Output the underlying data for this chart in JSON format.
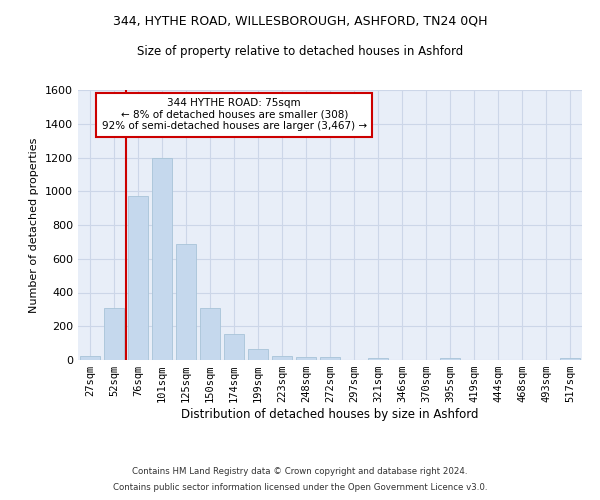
{
  "title1": "344, HYTHE ROAD, WILLESBOROUGH, ASHFORD, TN24 0QH",
  "title2": "Size of property relative to detached houses in Ashford",
  "xlabel": "Distribution of detached houses by size in Ashford",
  "ylabel": "Number of detached properties",
  "categories": [
    "27sqm",
    "52sqm",
    "76sqm",
    "101sqm",
    "125sqm",
    "150sqm",
    "174sqm",
    "199sqm",
    "223sqm",
    "248sqm",
    "272sqm",
    "297sqm",
    "321sqm",
    "346sqm",
    "370sqm",
    "395sqm",
    "419sqm",
    "444sqm",
    "468sqm",
    "493sqm",
    "517sqm"
  ],
  "values": [
    25,
    308,
    970,
    1200,
    690,
    310,
    155,
    65,
    25,
    15,
    15,
    0,
    10,
    0,
    0,
    10,
    0,
    0,
    0,
    0,
    10
  ],
  "bar_color": "#c5d8ed",
  "bar_edge_color": "#a8c4d8",
  "annotation_text_line1": "344 HYTHE ROAD: 75sqm",
  "annotation_text_line2": "← 8% of detached houses are smaller (308)",
  "annotation_text_line3": "92% of semi-detached houses are larger (3,467) →",
  "annotation_box_color": "#ffffff",
  "annotation_box_edge_color": "#cc0000",
  "vline_color": "#cc0000",
  "grid_color": "#ccd6e8",
  "background_color": "#e8eef8",
  "footer1": "Contains HM Land Registry data © Crown copyright and database right 2024.",
  "footer2": "Contains public sector information licensed under the Open Government Licence v3.0.",
  "ylim": [
    0,
    1600
  ],
  "yticks": [
    0,
    200,
    400,
    600,
    800,
    1000,
    1200,
    1400,
    1600
  ]
}
